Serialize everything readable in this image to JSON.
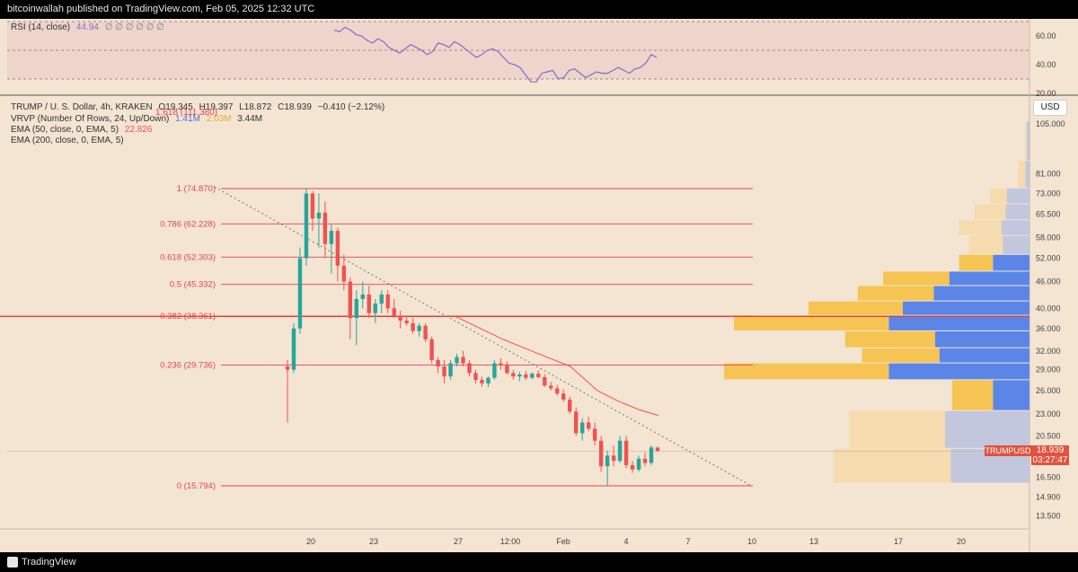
{
  "header": {
    "text": "bitcoinwallah published on TradingView.com, Feb 05, 2025 12:32 UTC"
  },
  "footer": {
    "brand": "TradingView"
  },
  "colors": {
    "background": "#f4e4d2",
    "up": "#26a69a",
    "down": "#ef5350",
    "fib": "#e0455a",
    "rsi": "#8a67c9",
    "ema": "#ef5350",
    "vp_up": "#5b86e8",
    "vp_down": "#f5c453",
    "vp_up_faint": "#b8c2e0",
    "vp_down_faint": "#f5d9a8"
  },
  "legend": {
    "rsi": {
      "label": "RSI (14, close)",
      "value": "44.94",
      "extra": "∅ ∅ ∅ ∅ ∅ ∅"
    },
    "symbol": {
      "label": "TRUMP / U. S. Dollar, 4h, KRAKEN",
      "o": "O19.345",
      "h": "H19.397",
      "l": "L18.872",
      "c": "C18.939",
      "chg": "−0.410 (−2.12%)"
    },
    "vrvp": {
      "label": "VRVP (Number Of Rows, 24, Up/Down)",
      "up": "1.41M",
      "down": "2.03M",
      "total": "3.44M",
      "overlap": "1.618 (111.380)"
    },
    "ema50": {
      "label": "EMA (50, close, 0, EMA, 5)",
      "value": "22.826"
    },
    "ema200": {
      "label": "EMA (200, close, 0, EMA, 5)"
    }
  },
  "price_axis": {
    "currency": "USD",
    "ticks": [
      "105.000",
      "81.000",
      "73.000",
      "65.500",
      "58.000",
      "52.000",
      "46.000",
      "40.000",
      "36.000",
      "32.000",
      "29.000",
      "26.000",
      "23.000",
      "20.500",
      "16.500",
      "14.900",
      "13.500"
    ]
  },
  "rsi_axis": {
    "ticks": [
      "60.00",
      "40.00",
      "20.00"
    ]
  },
  "time_axis": {
    "ticks": [
      "20",
      "23",
      "27",
      "12:00",
      "Feb",
      "4",
      "7",
      "10",
      "13",
      "17",
      "20"
    ]
  },
  "last_price": {
    "symbol": "TRUMPUSD",
    "price": "18.939",
    "countdown": "03:27:47"
  },
  "chart_data": {
    "type": "candlestick",
    "fib_levels": [
      {
        "label": "1 (74.870)",
        "value": 74.87
      },
      {
        "label": "0.786 (62.228)",
        "value": 62.228
      },
      {
        "label": "0.618 (52.303)",
        "value": 52.303
      },
      {
        "label": "0.5 (45.332)",
        "value": 45.332
      },
      {
        "label": "0.382 (38.361)",
        "value": 38.361
      },
      {
        "label": "0.236 (29.736)",
        "value": 29.736
      },
      {
        "label": "0 (15.794)",
        "value": 15.794
      }
    ],
    "candles": [
      [
        29.5,
        30.5,
        22,
        29
      ],
      [
        29,
        37,
        28.5,
        36
      ],
      [
        36,
        55,
        35,
        52
      ],
      [
        52,
        74.9,
        50,
        73
      ],
      [
        73,
        74,
        60,
        64
      ],
      [
        64,
        73,
        55,
        66
      ],
      [
        66,
        70,
        52,
        56
      ],
      [
        56,
        62,
        48,
        60
      ],
      [
        60,
        61,
        46,
        50
      ],
      [
        50,
        53,
        44,
        46
      ],
      [
        46,
        47,
        34,
        38
      ],
      [
        38,
        44,
        33,
        42
      ],
      [
        42,
        46,
        40,
        43
      ],
      [
        43,
        45,
        38,
        39
      ],
      [
        39,
        42,
        37,
        41
      ],
      [
        41,
        44,
        39,
        43
      ],
      [
        43,
        44,
        39,
        40
      ],
      [
        40,
        42,
        38,
        38.5
      ],
      [
        38.5,
        39.5,
        36,
        37.5
      ],
      [
        37.5,
        38.5,
        36.5,
        37
      ],
      [
        37,
        38,
        35,
        35.5
      ],
      [
        35.5,
        37,
        34.5,
        36.5
      ],
      [
        36.5,
        37,
        33.5,
        34
      ],
      [
        34,
        34.5,
        30,
        30.5
      ],
      [
        30.5,
        31,
        28.5,
        29.5
      ],
      [
        29.5,
        30.5,
        27,
        28
      ],
      [
        28,
        30.5,
        27.5,
        30
      ],
      [
        30,
        31.5,
        29.5,
        31
      ],
      [
        31,
        32,
        29.5,
        30
      ],
      [
        30,
        30.5,
        28,
        28.5
      ],
      [
        28.5,
        29,
        27,
        27.5
      ],
      [
        27.5,
        28,
        26.5,
        27
      ],
      [
        27,
        28,
        26.5,
        27.8
      ],
      [
        27.8,
        30.5,
        27.5,
        30
      ],
      [
        30,
        30.8,
        29,
        29.8
      ],
      [
        29.8,
        30.3,
        28.3,
        28.5
      ],
      [
        28.5,
        29,
        27.5,
        28
      ],
      [
        28,
        28.7,
        27.3,
        28.3
      ],
      [
        28.3,
        28.8,
        27.5,
        27.8
      ],
      [
        27.8,
        28.6,
        27.6,
        28.4
      ],
      [
        28.4,
        28.9,
        27.7,
        27.9
      ],
      [
        27.9,
        28.3,
        26.5,
        26.7
      ],
      [
        26.7,
        27.2,
        26,
        26.3
      ],
      [
        26.3,
        26.8,
        25.3,
        25.6
      ],
      [
        25.6,
        26.2,
        24.5,
        24.8
      ],
      [
        24.8,
        25.2,
        23,
        23.3
      ],
      [
        23.3,
        23.8,
        20.5,
        20.8
      ],
      [
        20.8,
        22.5,
        20,
        22
      ],
      [
        22,
        22.7,
        21,
        21.3
      ],
      [
        21.3,
        22,
        19.5,
        20
      ],
      [
        20,
        20.5,
        17,
        17.5
      ],
      [
        17.5,
        19,
        15.8,
        18.5
      ],
      [
        18.5,
        19.5,
        17.5,
        18
      ],
      [
        18,
        20.5,
        17.8,
        20
      ],
      [
        20,
        20.5,
        17.3,
        17.6
      ],
      [
        17.6,
        18,
        16.9,
        17.2
      ],
      [
        17.2,
        18.5,
        17,
        18.2
      ],
      [
        18.2,
        18.8,
        17.5,
        17.8
      ],
      [
        17.8,
        19.5,
        17.6,
        19.3
      ],
      [
        19.3,
        19.4,
        18.9,
        18.94
      ]
    ],
    "ema50": [
      [
        0.5,
        38.5
      ],
      [
        0.7,
        34
      ],
      [
        0.85,
        31
      ],
      [
        1.0,
        28.8
      ],
      [
        1.15,
        26.5
      ],
      [
        1.25,
        24.8
      ],
      [
        1.35,
        23.5
      ],
      [
        1.44,
        22.83
      ]
    ],
    "trendline": {
      "from": [
        -1.4,
        75.5
      ],
      "to": [
        6.0,
        15.8
      ]
    },
    "horizontal_line": 38.361,
    "volume_profile": [
      {
        "price": 96,
        "up": 0.02,
        "down": 0.01
      },
      {
        "price": 78,
        "up": 0.03,
        "down": 0.05
      },
      {
        "price": 72,
        "up": 0.16,
        "down": 0.12
      },
      {
        "price": 66,
        "up": 0.17,
        "down": 0.22
      },
      {
        "price": 61,
        "up": 0.2,
        "down": 0.3
      },
      {
        "price": 56,
        "up": 0.19,
        "down": 0.24
      },
      {
        "price": 50,
        "up": 0.26,
        "down": 0.24
      },
      {
        "price": 47,
        "up": 0.57,
        "down": 0.47
      },
      {
        "price": 43,
        "up": 0.68,
        "down": 0.54
      },
      {
        "price": 40,
        "up": 0.9,
        "down": 0.67
      },
      {
        "price": 37,
        "up": 1.0,
        "down": 1.1
      },
      {
        "price": 34,
        "up": 0.67,
        "down": 0.64
      },
      {
        "price": 31,
        "up": 0.64,
        "down": 0.55
      },
      {
        "price": 29,
        "up": 1.0,
        "down": 1.17
      },
      {
        "price": 26,
        "up": 0.26,
        "down": 0.29
      },
      {
        "price": 21,
        "up": 0.6,
        "down": 0.68
      },
      {
        "price": 17.5,
        "up": 0.56,
        "down": 0.83
      }
    ],
    "rsi": [
      64,
      63,
      66,
      64,
      61,
      60,
      57,
      55,
      58,
      56,
      52,
      50,
      48,
      51,
      54,
      52,
      50,
      47,
      49,
      55,
      54,
      52,
      56,
      54,
      51,
      48,
      45,
      47,
      50,
      51,
      49,
      45,
      41,
      40,
      38,
      33,
      28,
      28,
      34,
      35,
      36,
      30,
      31,
      36,
      37,
      34,
      31,
      33,
      35,
      34,
      34,
      36,
      38,
      36,
      34,
      37,
      38,
      41,
      47,
      45
    ],
    "rsi_range": [
      20,
      70
    ]
  }
}
